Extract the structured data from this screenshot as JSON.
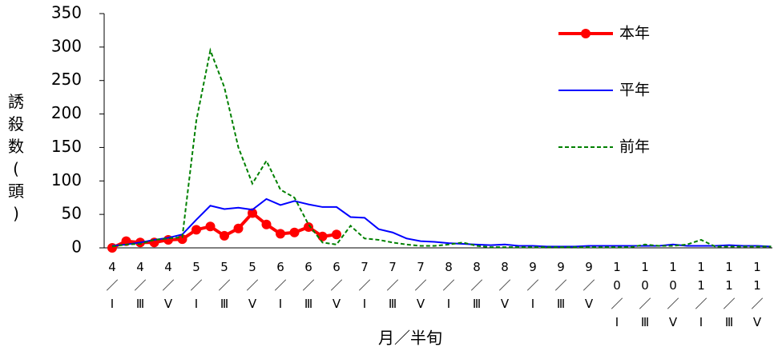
{
  "chart_data": {
    "type": "line",
    "y_label": "誘殺数(頭)",
    "x_label": "月／半旬",
    "categories": [
      "4／Ⅰ",
      null,
      "4／Ⅲ",
      null,
      "4／Ⅴ",
      null,
      "5／Ⅰ",
      null,
      "5／Ⅲ",
      null,
      "5／Ⅴ",
      null,
      "6／Ⅰ",
      null,
      "6／Ⅲ",
      null,
      "6／Ⅴ",
      null,
      "7／Ⅰ",
      null,
      "7／Ⅲ",
      null,
      "7／Ⅴ",
      null,
      "8／Ⅰ",
      null,
      "8／Ⅲ",
      null,
      "8／Ⅴ",
      null,
      "9／Ⅰ",
      null,
      "9／Ⅲ",
      null,
      "9／Ⅴ",
      null,
      "10／Ⅰ",
      null,
      "10／Ⅲ",
      null,
      "10／Ⅴ",
      null,
      "11／Ⅰ",
      null,
      "11／Ⅲ",
      null,
      "11／Ⅴ",
      null
    ],
    "series": [
      {
        "name": "本年",
        "color": "#ff0000",
        "style": "marker",
        "values": [
          0,
          10,
          8,
          8,
          12,
          13,
          27,
          32,
          18,
          29,
          52,
          35,
          21,
          23,
          31,
          17,
          20,
          null,
          null,
          null,
          null,
          null,
          null,
          null,
          null,
          null,
          null,
          null,
          null,
          null,
          null,
          null,
          null,
          null,
          null,
          null,
          null,
          null,
          null,
          null,
          null,
          null,
          null,
          null,
          null,
          null,
          null,
          null
        ]
      },
      {
        "name": "平年",
        "color": "#0000ff",
        "style": "solid",
        "values": [
          3,
          5,
          8,
          12,
          15,
          20,
          42,
          63,
          58,
          60,
          57,
          73,
          64,
          70,
          65,
          61,
          61,
          46,
          45,
          28,
          23,
          14,
          10,
          9,
          7,
          6,
          5,
          4,
          5,
          3,
          3,
          2,
          2,
          2,
          3,
          3,
          3,
          3,
          3,
          3,
          5,
          3,
          3,
          3,
          4,
          3,
          3,
          2
        ]
      },
      {
        "name": "前年",
        "color": "#008000",
        "style": "dashed",
        "values": [
          2,
          5,
          6,
          12,
          14,
          16,
          190,
          295,
          240,
          150,
          96,
          130,
          87,
          75,
          35,
          8,
          5,
          33,
          14,
          12,
          8,
          5,
          3,
          3,
          5,
          8,
          3,
          1,
          1,
          1,
          1,
          1,
          1,
          1,
          1,
          1,
          1,
          1,
          5,
          3,
          3,
          5,
          12,
          2,
          2,
          2,
          2,
          2
        ]
      }
    ],
    "ylim": [
      0,
      350
    ],
    "yticks": [
      0,
      50,
      100,
      150,
      200,
      250,
      300,
      350
    ]
  }
}
